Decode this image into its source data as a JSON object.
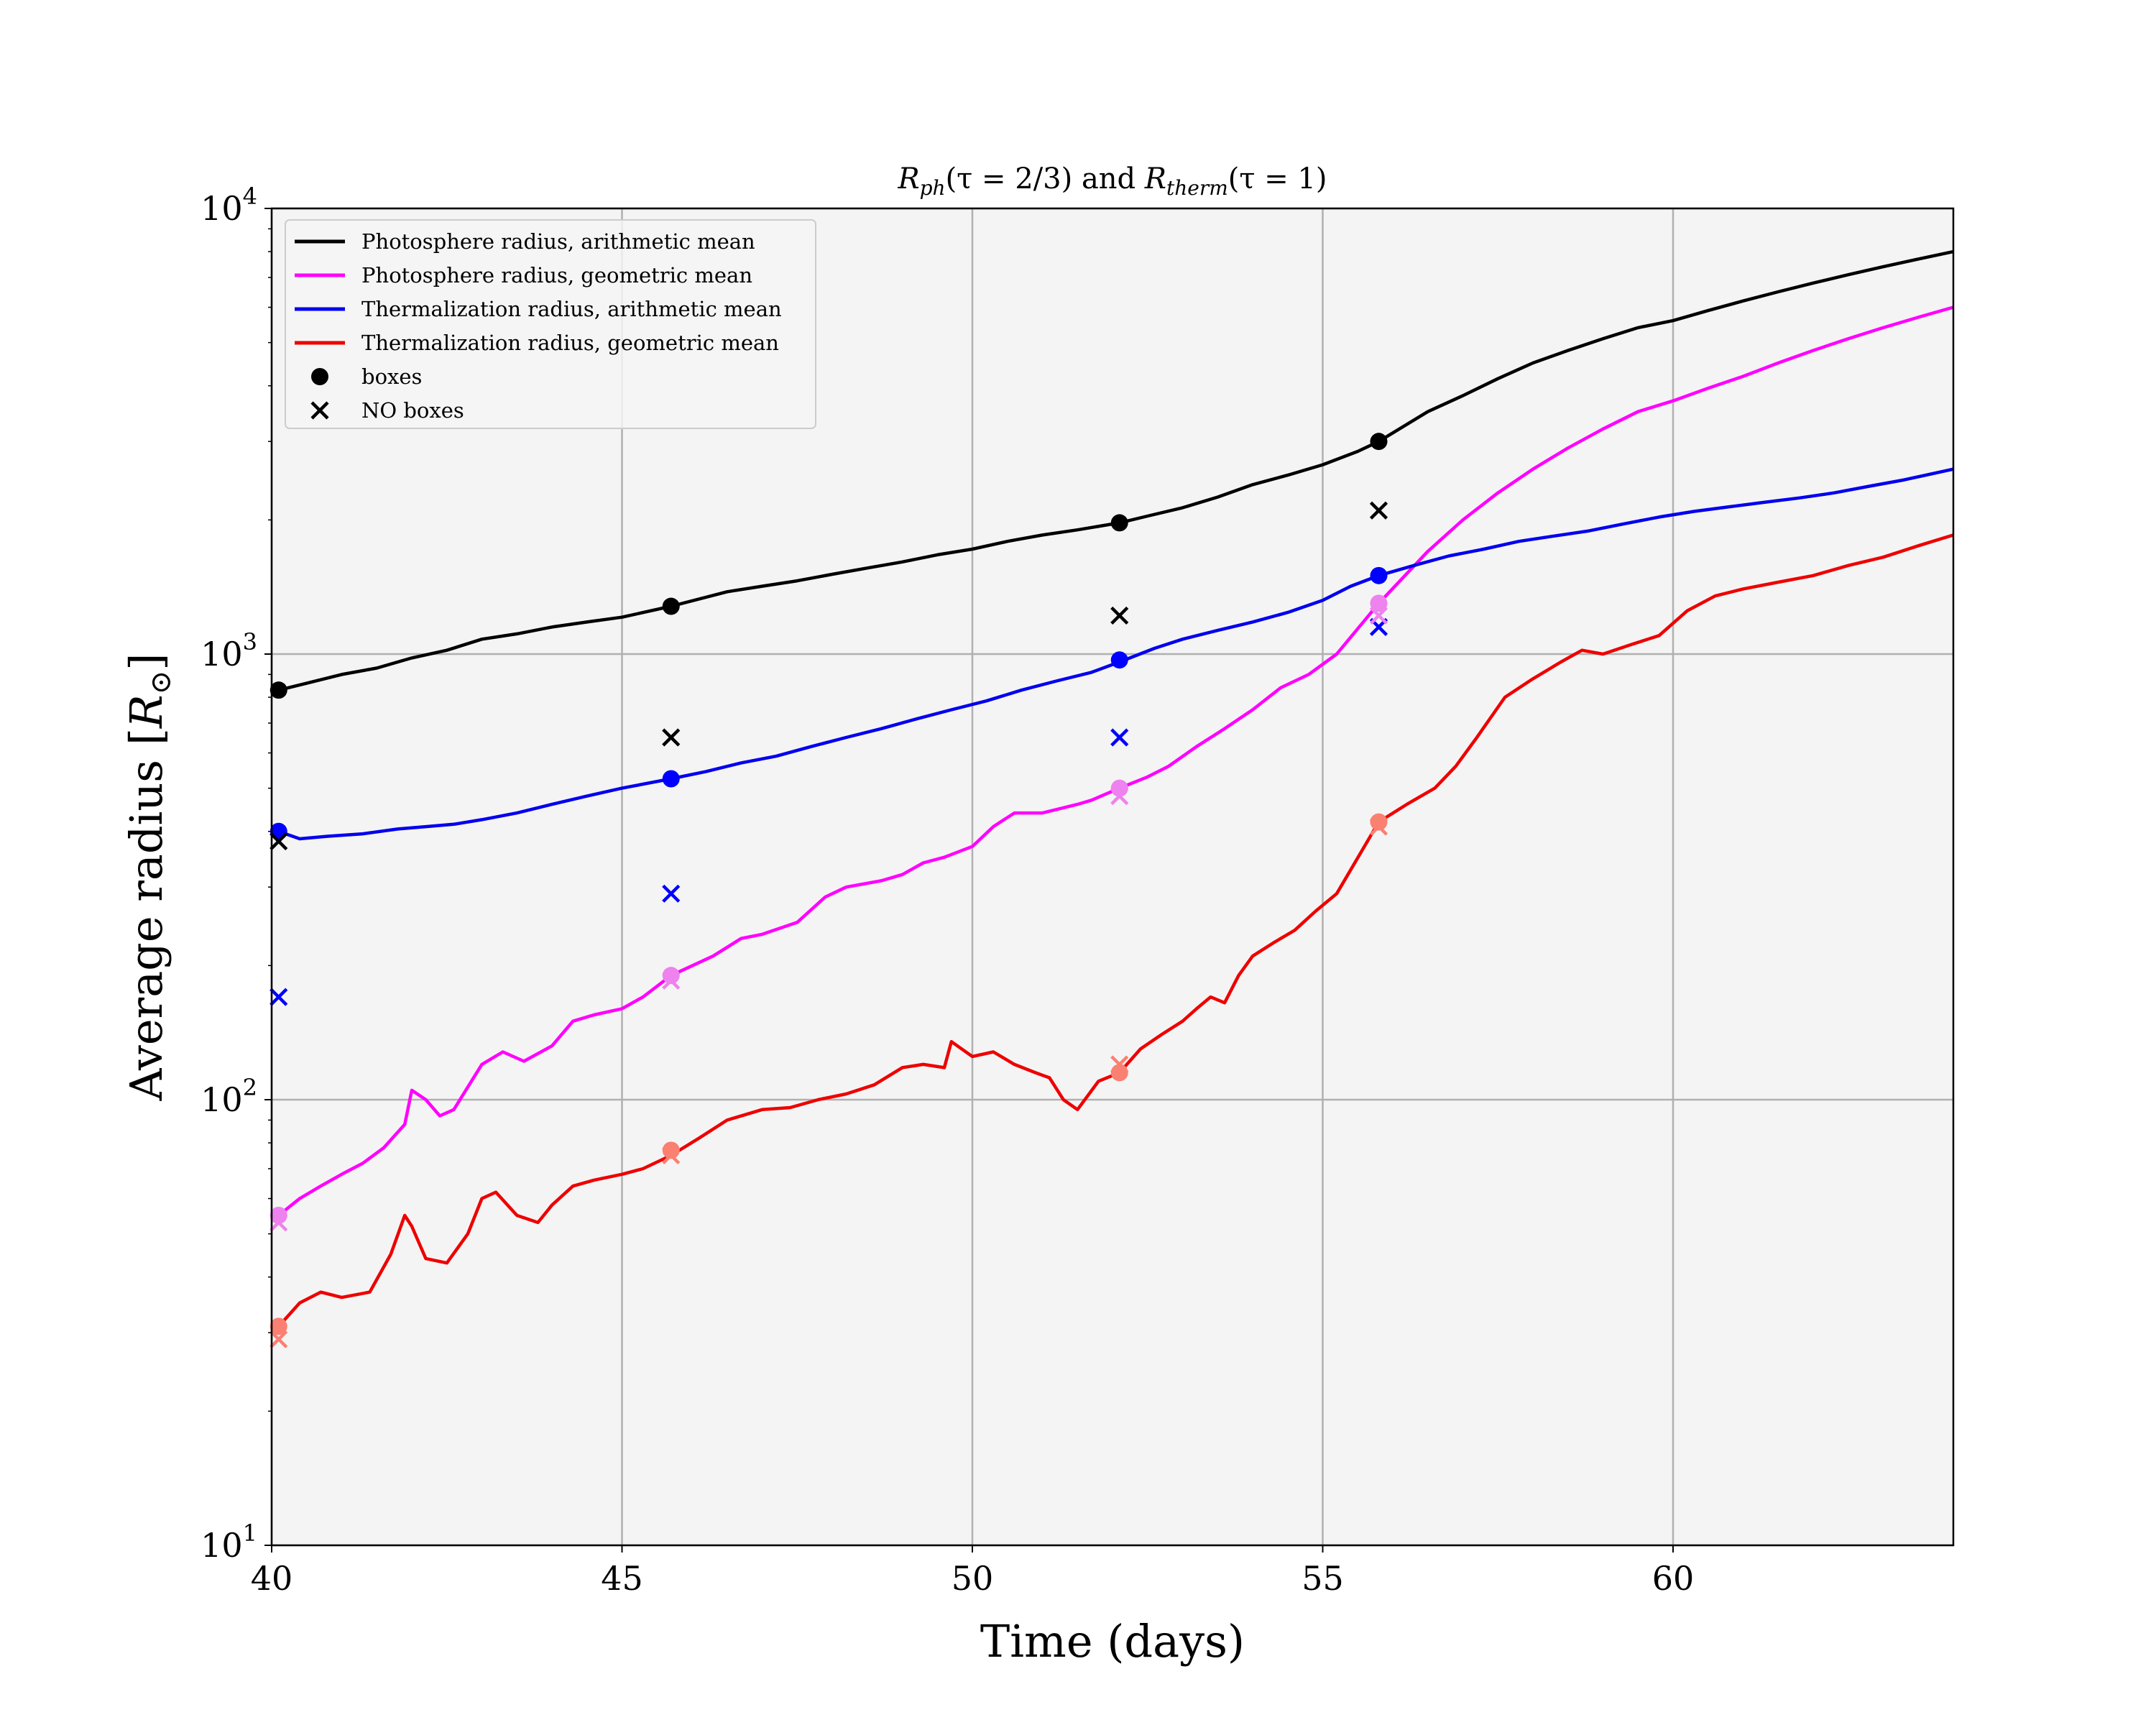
{
  "chart_data": {
    "type": "line",
    "title": "R_ph(τ = 2/3) and R_therm(τ = 1)",
    "title_parts": {
      "r_ph": "R",
      "ph_sub": "ph",
      "ph_arg": "(τ = 2/3) and ",
      "r_th": "R",
      "th_sub": "therm",
      "th_arg": "(τ = 1)"
    },
    "xlabel": "Time (days)",
    "ylabel": "Average radius [R⊙]",
    "ylabel_parts": {
      "main": "Average radius [",
      "r": "R",
      "sun": "⊙",
      "close": "]"
    },
    "xlim": [
      40,
      64
    ],
    "ylim": [
      10,
      10000
    ],
    "yscale": "log",
    "grid": true,
    "legend_position": "top-left",
    "x_ticks": [
      {
        "value": 40,
        "label": "40"
      },
      {
        "value": 45,
        "label": "45"
      },
      {
        "value": 50,
        "label": "50"
      },
      {
        "value": 55,
        "label": "55"
      },
      {
        "value": 60,
        "label": "60"
      }
    ],
    "y_ticks": [
      {
        "value": 10,
        "base": "10",
        "exp": "1"
      },
      {
        "value": 100,
        "base": "10",
        "exp": "2"
      },
      {
        "value": 1000,
        "base": "10",
        "exp": "3"
      },
      {
        "value": 10000,
        "base": "10",
        "exp": "4"
      }
    ],
    "series": [
      {
        "name": "Photosphere radius, arithmetic mean",
        "color": "#000000",
        "x": [
          40.1,
          40.5,
          41,
          41.5,
          42,
          42.5,
          43,
          43.5,
          44,
          44.5,
          45,
          45.7,
          46.5,
          47,
          47.5,
          48,
          48.5,
          49,
          49.5,
          50,
          50.5,
          51,
          51.5,
          52.1,
          52.5,
          53,
          53.5,
          54,
          54.5,
          55,
          55.5,
          55.8,
          56.5,
          57,
          57.5,
          58,
          58.5,
          59,
          59.5,
          60,
          60.5,
          61,
          61.5,
          62,
          62.5,
          63,
          63.5,
          64
        ],
        "y": [
          830,
          860,
          900,
          930,
          980,
          1020,
          1080,
          1110,
          1150,
          1180,
          1210,
          1280,
          1380,
          1420,
          1460,
          1510,
          1560,
          1610,
          1670,
          1720,
          1790,
          1850,
          1900,
          1970,
          2040,
          2130,
          2250,
          2400,
          2520,
          2660,
          2850,
          3000,
          3500,
          3800,
          4150,
          4500,
          4800,
          5100,
          5400,
          5600,
          5900,
          6200,
          6500,
          6800,
          7100,
          7400,
          7700,
          8000
        ]
      },
      {
        "name": "Photosphere radius, geometric mean",
        "color": "#ff00ff",
        "x": [
          40.1,
          40.4,
          40.7,
          41,
          41.3,
          41.6,
          41.9,
          42,
          42.2,
          42.4,
          42.6,
          43,
          43.3,
          43.6,
          44,
          44.3,
          44.6,
          45,
          45.3,
          45.7,
          46.3,
          46.7,
          47,
          47.5,
          47.9,
          48.2,
          48.7,
          49,
          49.3,
          49.6,
          50,
          50.3,
          50.6,
          51,
          51.5,
          51.7,
          52.1,
          52.5,
          52.8,
          53.2,
          53.6,
          54,
          54.4,
          54.8,
          55.2,
          55.8,
          56.5,
          57,
          57.5,
          58,
          58.5,
          59,
          59.5,
          60,
          60.5,
          61,
          61.5,
          62,
          62.5,
          63,
          63.5,
          64
        ],
        "y": [
          55,
          60,
          64,
          68,
          72,
          78,
          88,
          105,
          100,
          92,
          95,
          120,
          128,
          122,
          132,
          150,
          155,
          160,
          170,
          190,
          210,
          230,
          235,
          250,
          285,
          300,
          310,
          320,
          340,
          350,
          370,
          410,
          440,
          440,
          460,
          470,
          500,
          530,
          560,
          620,
          680,
          750,
          840,
          900,
          1000,
          1300,
          1700,
          2000,
          2300,
          2600,
          2900,
          3200,
          3500,
          3700,
          3950,
          4200,
          4500,
          4800,
          5100,
          5400,
          5700,
          6000
        ]
      },
      {
        "name": "Thermalization radius, arithmetic mean",
        "color": "#0000ee",
        "x": [
          40.1,
          40.4,
          40.8,
          41.3,
          41.8,
          42.2,
          42.6,
          43,
          43.5,
          44,
          44.5,
          45,
          45.7,
          46.2,
          46.7,
          47.2,
          47.7,
          48.2,
          48.7,
          49.2,
          49.7,
          50.2,
          50.7,
          51.2,
          51.7,
          52.1,
          52.6,
          53,
          53.5,
          54,
          54.5,
          55,
          55.4,
          55.8,
          56.3,
          56.8,
          57.3,
          57.8,
          58.3,
          58.8,
          59.3,
          59.8,
          60.3,
          60.8,
          61.3,
          61.8,
          62.3,
          62.8,
          63.3,
          64
        ],
        "y": [
          400,
          385,
          390,
          395,
          405,
          410,
          415,
          425,
          440,
          460,
          480,
          500,
          525,
          545,
          570,
          590,
          620,
          650,
          680,
          715,
          750,
          785,
          830,
          870,
          910,
          960,
          1030,
          1080,
          1130,
          1180,
          1240,
          1320,
          1420,
          1500,
          1580,
          1660,
          1720,
          1790,
          1840,
          1890,
          1960,
          2030,
          2090,
          2140,
          2190,
          2240,
          2300,
          2380,
          2460,
          2600
        ]
      },
      {
        "name": "Thermalization radius, geometric mean",
        "color": "#ee0000",
        "x": [
          40.1,
          40.4,
          40.7,
          41,
          41.4,
          41.7,
          41.9,
          42,
          42.2,
          42.5,
          42.8,
          43,
          43.2,
          43.5,
          43.8,
          44,
          44.3,
          44.6,
          45,
          45.3,
          45.7,
          46.1,
          46.5,
          47,
          47.4,
          47.8,
          48.2,
          48.6,
          49,
          49.3,
          49.6,
          49.7,
          50,
          50.3,
          50.6,
          50.9,
          51.1,
          51.3,
          51.5,
          51.8,
          52.1,
          52.4,
          52.7,
          53,
          53.2,
          53.4,
          53.6,
          53.8,
          54,
          54.3,
          54.6,
          54.9,
          55.2,
          55.8,
          56.2,
          56.6,
          56.9,
          57.2,
          57.6,
          58,
          58.4,
          58.7,
          59,
          59.4,
          59.8,
          60.2,
          60.6,
          61,
          61.5,
          62,
          62.5,
          63,
          63.5,
          64
        ],
        "y": [
          31,
          35,
          37,
          36,
          37,
          45,
          55,
          52,
          44,
          43,
          50,
          60,
          62,
          55,
          53,
          58,
          64,
          66,
          68,
          70,
          75,
          82,
          90,
          95,
          96,
          100,
          103,
          108,
          118,
          120,
          118,
          135,
          125,
          128,
          120,
          115,
          112,
          100,
          95,
          110,
          115,
          130,
          140,
          150,
          160,
          170,
          165,
          190,
          210,
          225,
          240,
          265,
          290,
          420,
          460,
          500,
          560,
          650,
          800,
          880,
          960,
          1020,
          1000,
          1050,
          1100,
          1250,
          1350,
          1400,
          1450,
          1500,
          1580,
          1650,
          1750,
          1850
        ]
      }
    ],
    "markers": {
      "boxes": {
        "label": "boxes",
        "symbol": "circle",
        "points": [
          {
            "x": 40.1,
            "y": 830,
            "color": "#000000"
          },
          {
            "x": 45.7,
            "y": 1280,
            "color": "#000000"
          },
          {
            "x": 52.1,
            "y": 1970,
            "color": "#000000"
          },
          {
            "x": 55.8,
            "y": 3000,
            "color": "#000000"
          },
          {
            "x": 40.1,
            "y": 400,
            "color": "#0000ff"
          },
          {
            "x": 45.7,
            "y": 525,
            "color": "#0000ff"
          },
          {
            "x": 52.1,
            "y": 970,
            "color": "#0000ff"
          },
          {
            "x": 55.8,
            "y": 1500,
            "color": "#0000ff"
          },
          {
            "x": 40.1,
            "y": 55,
            "color": "#ee82ee"
          },
          {
            "x": 45.7,
            "y": 190,
            "color": "#ee82ee"
          },
          {
            "x": 52.1,
            "y": 500,
            "color": "#ee82ee"
          },
          {
            "x": 55.8,
            "y": 1300,
            "color": "#ee82ee"
          },
          {
            "x": 40.1,
            "y": 31,
            "color": "#fa8072"
          },
          {
            "x": 45.7,
            "y": 77,
            "color": "#fa8072"
          },
          {
            "x": 52.1,
            "y": 115,
            "color": "#fa8072"
          },
          {
            "x": 55.8,
            "y": 420,
            "color": "#fa8072"
          }
        ]
      },
      "no_boxes": {
        "label": "NO boxes",
        "symbol": "x",
        "points": [
          {
            "x": 40.1,
            "y": 380,
            "color": "#000000"
          },
          {
            "x": 45.7,
            "y": 650,
            "color": "#000000"
          },
          {
            "x": 52.1,
            "y": 1220,
            "color": "#000000"
          },
          {
            "x": 55.8,
            "y": 2100,
            "color": "#000000"
          },
          {
            "x": 40.1,
            "y": 170,
            "color": "#0000ff"
          },
          {
            "x": 45.7,
            "y": 290,
            "color": "#0000ff"
          },
          {
            "x": 52.1,
            "y": 650,
            "color": "#0000ff"
          },
          {
            "x": 55.8,
            "y": 1150,
            "color": "#0000ff"
          },
          {
            "x": 40.1,
            "y": 53,
            "color": "#ee82ee"
          },
          {
            "x": 45.7,
            "y": 185,
            "color": "#ee82ee"
          },
          {
            "x": 52.1,
            "y": 480,
            "color": "#ee82ee"
          },
          {
            "x": 55.8,
            "y": 1220,
            "color": "#ee82ee"
          },
          {
            "x": 40.1,
            "y": 29,
            "color": "#fa8072"
          },
          {
            "x": 45.7,
            "y": 75,
            "color": "#fa8072"
          },
          {
            "x": 52.1,
            "y": 120,
            "color": "#fa8072"
          },
          {
            "x": 55.8,
            "y": 410,
            "color": "#fa8072"
          }
        ]
      }
    },
    "colors": {
      "plot_background": "#f4f4f4",
      "grid": "#b0b0b0"
    }
  }
}
